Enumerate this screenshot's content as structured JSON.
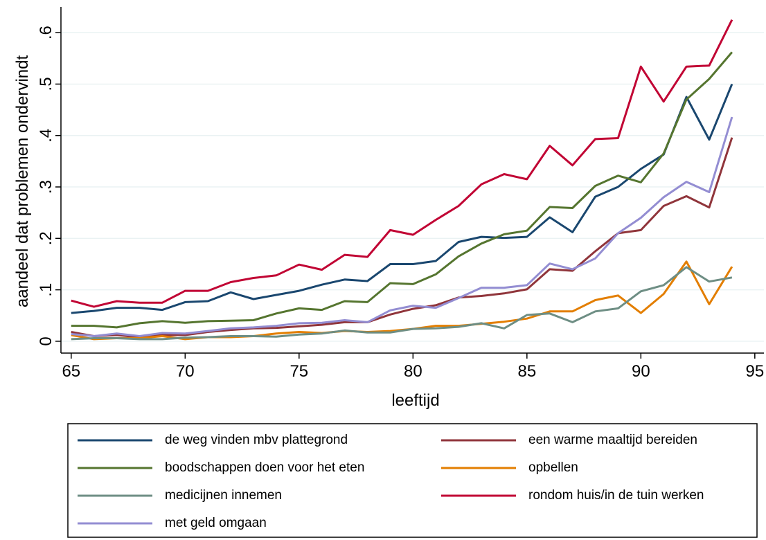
{
  "chart_data": {
    "type": "line",
    "xlabel": "leeftijd",
    "ylabel": "aandeel dat problemen ondervindt",
    "x": [
      65,
      66,
      67,
      68,
      69,
      70,
      71,
      72,
      73,
      74,
      75,
      76,
      77,
      78,
      79,
      80,
      81,
      82,
      83,
      84,
      85,
      86,
      87,
      88,
      89,
      90,
      91,
      92,
      93,
      94
    ],
    "xlim": [
      64.55,
      95.4
    ],
    "xticks": [
      65,
      70,
      75,
      80,
      85,
      90,
      95
    ],
    "ylim": [
      -0.023,
      0.65
    ],
    "yticks": [
      0,
      {
        "value": 0.1,
        "label": ".1"
      },
      {
        "value": 0.2,
        "label": ".2"
      },
      {
        "value": 0.3,
        "label": ".3"
      },
      {
        "value": 0.4,
        "label": ".4"
      },
      {
        "value": 0.5,
        "label": ".5"
      },
      {
        "value": 0.6,
        "label": ".6"
      }
    ],
    "grid": true,
    "series": [
      {
        "name": "de weg vinden mbv plattegrond",
        "color": "#1a476f",
        "values": [
          0.055,
          0.059,
          0.065,
          0.065,
          0.061,
          0.076,
          0.078,
          0.095,
          0.082,
          0.09,
          0.098,
          0.11,
          0.12,
          0.117,
          0.15,
          0.15,
          0.156,
          0.193,
          0.203,
          0.201,
          0.203,
          0.241,
          0.212,
          0.281,
          0.3,
          0.335,
          0.363,
          0.475,
          0.392,
          0.5
        ]
      },
      {
        "name": "een warme maaltijd bereiden",
        "color": "#90353b",
        "values": [
          0.018,
          0.01,
          0.012,
          0.008,
          0.012,
          0.012,
          0.018,
          0.022,
          0.025,
          0.026,
          0.029,
          0.032,
          0.037,
          0.037,
          0.052,
          0.063,
          0.07,
          0.085,
          0.088,
          0.093,
          0.101,
          0.14,
          0.137,
          0.175,
          0.21,
          0.216,
          0.263,
          0.282,
          0.26,
          0.396
        ]
      },
      {
        "name": "boodschappen doen voor het eten",
        "color": "#55752f",
        "values": [
          0.03,
          0.03,
          0.027,
          0.035,
          0.039,
          0.036,
          0.039,
          0.04,
          0.041,
          0.054,
          0.064,
          0.061,
          0.078,
          0.076,
          0.113,
          0.111,
          0.13,
          0.165,
          0.19,
          0.208,
          0.215,
          0.261,
          0.259,
          0.302,
          0.322,
          0.309,
          0.365,
          0.47,
          0.51,
          0.562
        ]
      },
      {
        "name": "opbellen",
        "color": "#e37e00",
        "values": [
          0.012,
          0.004,
          0.006,
          0.006,
          0.01,
          0.004,
          0.008,
          0.008,
          0.01,
          0.015,
          0.018,
          0.016,
          0.02,
          0.018,
          0.02,
          0.024,
          0.03,
          0.03,
          0.034,
          0.038,
          0.044,
          0.058,
          0.058,
          0.08,
          0.089,
          0.055,
          0.092,
          0.155,
          0.072,
          0.145
        ]
      },
      {
        "name": "medicijnen innemen",
        "color": "#6e8e84",
        "values": [
          0.004,
          0.006,
          0.006,
          0.004,
          0.004,
          0.007,
          0.008,
          0.01,
          0.01,
          0.009,
          0.013,
          0.015,
          0.021,
          0.017,
          0.017,
          0.024,
          0.025,
          0.028,
          0.035,
          0.025,
          0.051,
          0.054,
          0.037,
          0.058,
          0.064,
          0.097,
          0.109,
          0.144,
          0.116,
          0.124
        ]
      },
      {
        "name": "rondom huis/in de tuin werken",
        "color": "#c10534",
        "values": [
          0.079,
          0.067,
          0.078,
          0.075,
          0.075,
          0.098,
          0.098,
          0.115,
          0.123,
          0.128,
          0.149,
          0.139,
          0.168,
          0.164,
          0.216,
          0.207,
          0.236,
          0.263,
          0.305,
          0.325,
          0.315,
          0.38,
          0.342,
          0.393,
          0.395,
          0.534,
          0.466,
          0.534,
          0.536,
          0.625
        ]
      },
      {
        "name": "met geld omgaan",
        "color": "#938dd2",
        "values": [
          0.014,
          0.01,
          0.015,
          0.01,
          0.016,
          0.015,
          0.02,
          0.025,
          0.027,
          0.03,
          0.035,
          0.036,
          0.041,
          0.037,
          0.06,
          0.069,
          0.065,
          0.084,
          0.104,
          0.104,
          0.109,
          0.151,
          0.14,
          0.161,
          0.21,
          0.24,
          0.28,
          0.31,
          0.29,
          0.436
        ]
      }
    ]
  }
}
